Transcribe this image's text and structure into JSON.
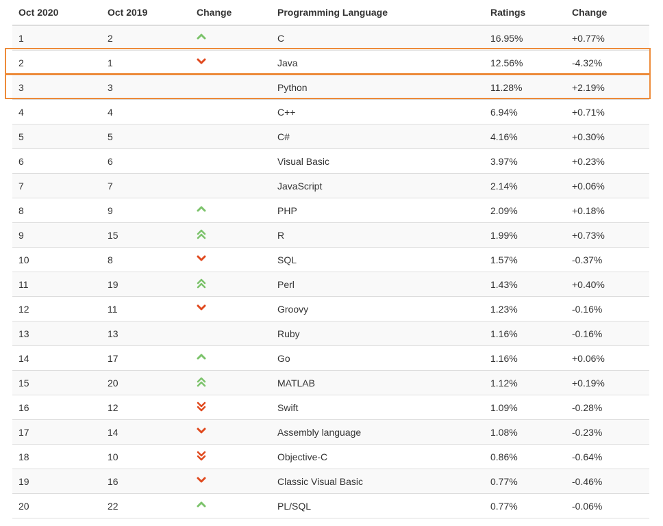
{
  "colors": {
    "up": "#7cc36b",
    "down": "#e04a1f",
    "highlight": "#ed8b3a"
  },
  "table": {
    "headers": [
      "Oct 2020",
      "Oct 2019",
      "Change",
      "Programming Language",
      "Ratings",
      "Change"
    ],
    "rows": [
      {
        "rank2020": "1",
        "rank2019": "2",
        "trend": "up",
        "language": "C",
        "rating": "16.95%",
        "change": "+0.77%"
      },
      {
        "rank2020": "2",
        "rank2019": "1",
        "trend": "down",
        "language": "Java",
        "rating": "12.56%",
        "change": "-4.32%"
      },
      {
        "rank2020": "3",
        "rank2019": "3",
        "trend": "none",
        "language": "Python",
        "rating": "11.28%",
        "change": "+2.19%"
      },
      {
        "rank2020": "4",
        "rank2019": "4",
        "trend": "none",
        "language": "C++",
        "rating": "6.94%",
        "change": "+0.71%"
      },
      {
        "rank2020": "5",
        "rank2019": "5",
        "trend": "none",
        "language": "C#",
        "rating": "4.16%",
        "change": "+0.30%"
      },
      {
        "rank2020": "6",
        "rank2019": "6",
        "trend": "none",
        "language": "Visual Basic",
        "rating": "3.97%",
        "change": "+0.23%"
      },
      {
        "rank2020": "7",
        "rank2019": "7",
        "trend": "none",
        "language": "JavaScript",
        "rating": "2.14%",
        "change": "+0.06%"
      },
      {
        "rank2020": "8",
        "rank2019": "9",
        "trend": "up",
        "language": "PHP",
        "rating": "2.09%",
        "change": "+0.18%"
      },
      {
        "rank2020": "9",
        "rank2019": "15",
        "trend": "up2",
        "language": "R",
        "rating": "1.99%",
        "change": "+0.73%"
      },
      {
        "rank2020": "10",
        "rank2019": "8",
        "trend": "down",
        "language": "SQL",
        "rating": "1.57%",
        "change": "-0.37%"
      },
      {
        "rank2020": "11",
        "rank2019": "19",
        "trend": "up2",
        "language": "Perl",
        "rating": "1.43%",
        "change": "+0.40%"
      },
      {
        "rank2020": "12",
        "rank2019": "11",
        "trend": "down",
        "language": "Groovy",
        "rating": "1.23%",
        "change": "-0.16%"
      },
      {
        "rank2020": "13",
        "rank2019": "13",
        "trend": "none",
        "language": "Ruby",
        "rating": "1.16%",
        "change": "-0.16%"
      },
      {
        "rank2020": "14",
        "rank2019": "17",
        "trend": "up",
        "language": "Go",
        "rating": "1.16%",
        "change": "+0.06%"
      },
      {
        "rank2020": "15",
        "rank2019": "20",
        "trend": "up2",
        "language": "MATLAB",
        "rating": "1.12%",
        "change": "+0.19%"
      },
      {
        "rank2020": "16",
        "rank2019": "12",
        "trend": "down2",
        "language": "Swift",
        "rating": "1.09%",
        "change": "-0.28%"
      },
      {
        "rank2020": "17",
        "rank2019": "14",
        "trend": "down",
        "language": "Assembly language",
        "rating": "1.08%",
        "change": "-0.23%"
      },
      {
        "rank2020": "18",
        "rank2019": "10",
        "trend": "down2",
        "language": "Objective-C",
        "rating": "0.86%",
        "change": "-0.64%"
      },
      {
        "rank2020": "19",
        "rank2019": "16",
        "trend": "down",
        "language": "Classic Visual Basic",
        "rating": "0.77%",
        "change": "-0.46%"
      },
      {
        "rank2020": "20",
        "rank2019": "22",
        "trend": "up",
        "language": "PL/SQL",
        "rating": "0.77%",
        "change": "-0.06%"
      }
    ]
  },
  "highlighted_rows": [
    2,
    3
  ]
}
